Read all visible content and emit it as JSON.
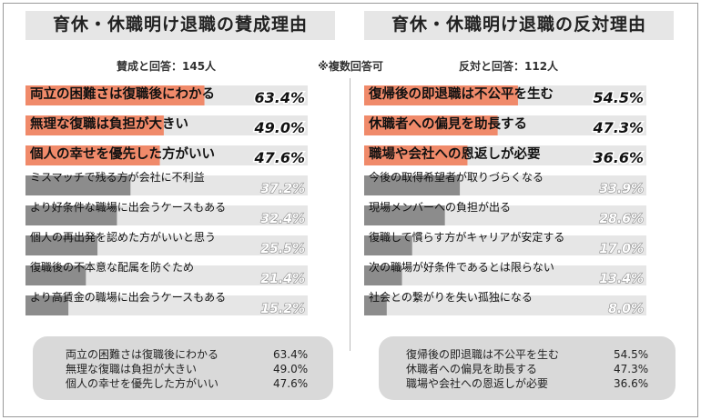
{
  "note": "※複数回答可",
  "colors": {
    "highlight": "#f08a6a",
    "other": "#8c8c8c",
    "track": "#e6e6e6",
    "summary_bg": "#d9d9d9"
  },
  "chart_data": [
    {
      "type": "bar",
      "title": "育休・休職明け退職の賛成理由",
      "subtitle": "賛成と回答：145人",
      "categories": [
        "両立の困難さは復職後にわかる",
        "無理な復職は負担が大きい",
        "個人の幸せを優先した方がいい",
        "ミスマッチで残る方が会社に不利益",
        "より好条件な職場に出会うケースもある",
        "個人の再出発を認めた方がいいと思う",
        "復職後の不本意な配属を防ぐため",
        "より高賃金の職場に出会うケースもある"
      ],
      "value_labels": [
        "63.4%",
        "49.0%",
        "47.6%",
        "37.2%",
        "32.4%",
        "25.5%",
        "21.4%",
        "15.2%"
      ],
      "values": [
        63.4,
        49.0,
        47.6,
        37.2,
        32.4,
        25.5,
        21.4,
        15.2
      ],
      "highlight_count": 3,
      "xlim": [
        0,
        100
      ],
      "summary": [
        {
          "label": "両立の困難さは復職後にわかる",
          "value": "63.4%"
        },
        {
          "label": "無理な復職は負担が大きい",
          "value": "49.0%"
        },
        {
          "label": "個人の幸せを優先した方がいい",
          "value": "47.6%"
        }
      ]
    },
    {
      "type": "bar",
      "title": "育休・休職明け退職の反対理由",
      "subtitle": "反対と回答：112人",
      "categories": [
        "復帰後の即退職は不公平を生む",
        "休職者への偏見を助長する",
        "職場や会社への恩返しが必要",
        "今後の取得希望者が取りづらくなる",
        "現場メンバーへの負担が出る",
        "復職して慣らす方がキャリアが安定する",
        "次の職場が好条件であるとは限らない",
        "社会との繋がりを失い孤独になる"
      ],
      "value_labels": [
        "54.5%",
        "47.3%",
        "36.6%",
        "33.9%",
        "28.6%",
        "17.0%",
        "13.4%",
        "8.0%"
      ],
      "values": [
        54.5,
        47.3,
        36.6,
        33.9,
        28.6,
        17.0,
        13.4,
        8.0
      ],
      "highlight_count": 3,
      "xlim": [
        0,
        100
      ],
      "summary": [
        {
          "label": "復帰後の即退職は不公平を生む",
          "value": "54.5%"
        },
        {
          "label": "休職者への偏見を助長する",
          "value": "47.3%"
        },
        {
          "label": "職場や会社への恩返しが必要",
          "value": "36.6%"
        }
      ]
    }
  ]
}
